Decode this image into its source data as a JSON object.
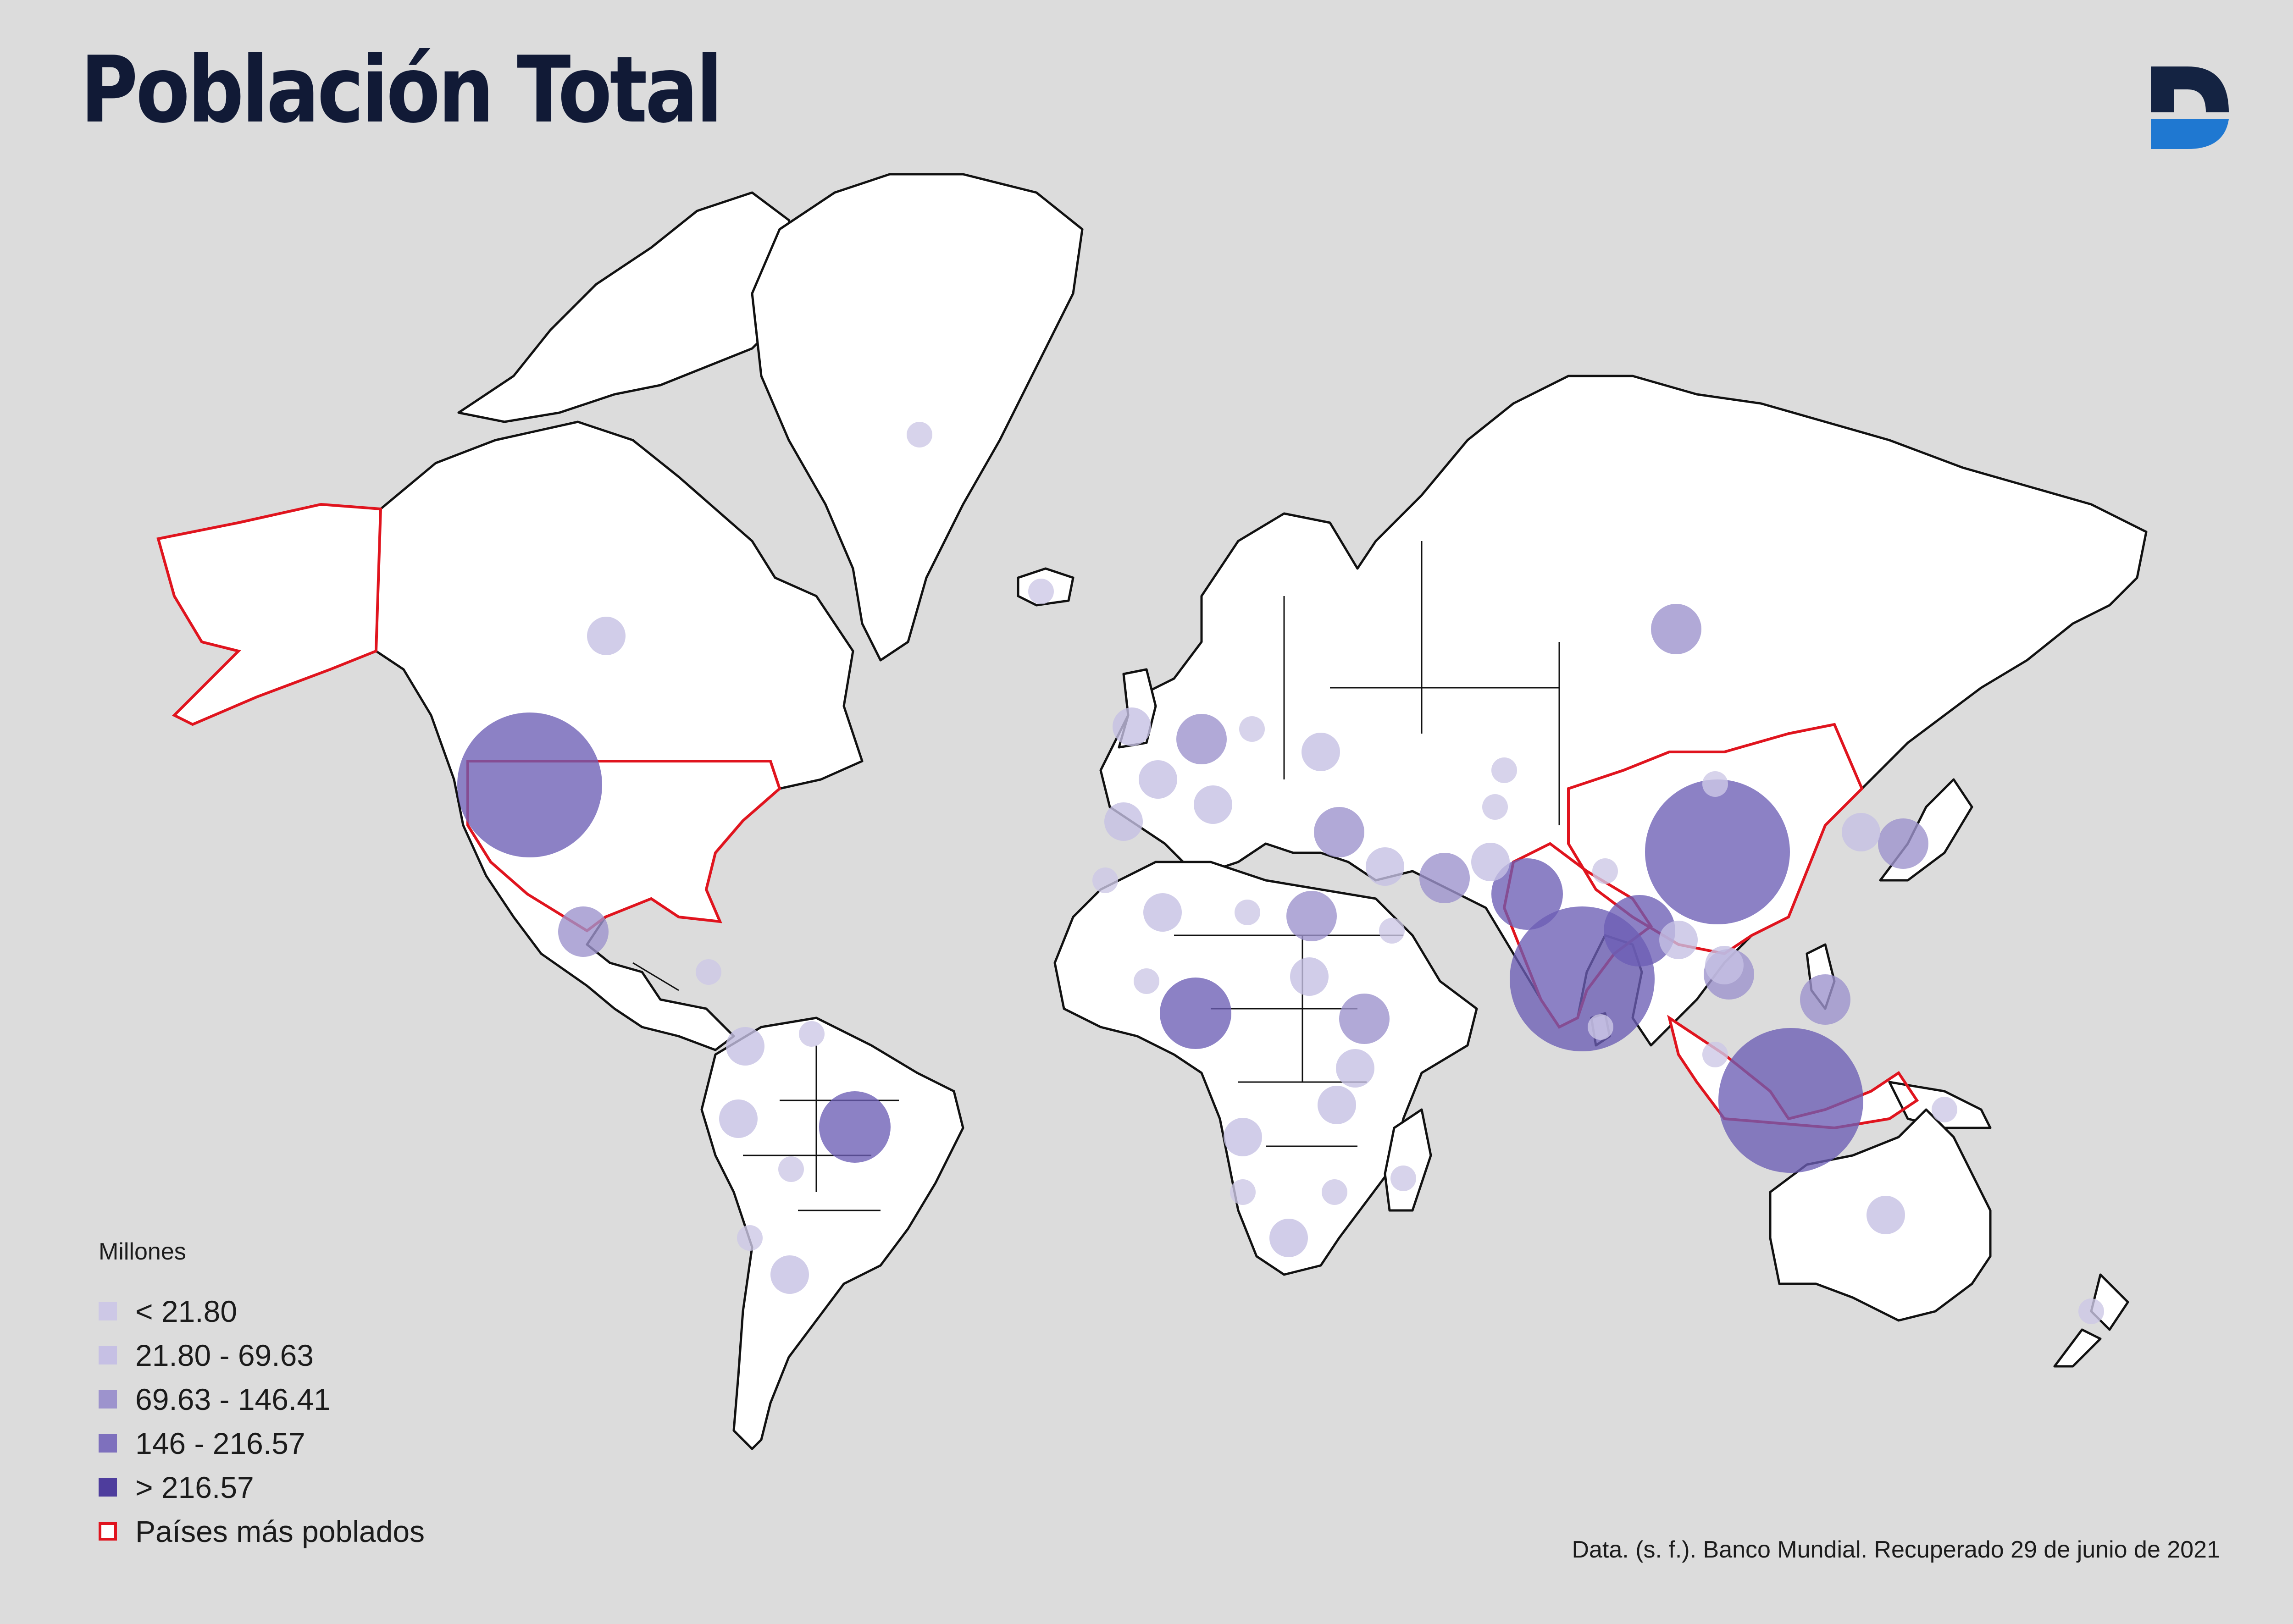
{
  "title": "Población Total",
  "logo": {
    "icon": "d-letter-logo-icon",
    "colors": [
      "#142342",
      "#1f78d1"
    ]
  },
  "colors": {
    "background": "#dcdcdc",
    "land": "#ffffff",
    "border": "#111111",
    "highlight_border": "#e0141e"
  },
  "legend": {
    "title": "Millones",
    "items": [
      {
        "label": "< 21.80",
        "color": "#cdc8e6"
      },
      {
        "label": "21.80  -  69.63",
        "color": "#c6c0e4"
      },
      {
        "label": "69.63  -  146.41",
        "color": "#9d93cd"
      },
      {
        "label": "146  -  216.57",
        "color": "#7e70bd"
      },
      {
        "label": "> 216.57",
        "color": "#4e3d9d"
      }
    ],
    "highlight": {
      "label": "Países más poblados",
      "color": "#e0141e"
    }
  },
  "source": "Data. (s. f.). Banco Mundial. Recuperado 29 de junio de 2021",
  "map_data": {
    "type": "proportional-symbol-map",
    "unit": "Millones",
    "highlighted_countries": [
      "Estados Unidos",
      "China",
      "India",
      "Indonesia"
    ],
    "bubbles": [
      {
        "region": "Estados Unidos",
        "class": 5
      },
      {
        "region": "China",
        "class": 5
      },
      {
        "region": "India",
        "class": 5
      },
      {
        "region": "Indonesia",
        "class": 5
      },
      {
        "region": "Brasil",
        "class": 4
      },
      {
        "region": "Nigeria",
        "class": 4
      },
      {
        "region": "Pakistán",
        "class": 4
      },
      {
        "region": "Bangladés",
        "class": 4
      },
      {
        "region": "Rusia",
        "class": 3
      },
      {
        "region": "México",
        "class": 3
      },
      {
        "region": "Japón",
        "class": 3
      },
      {
        "region": "Etiopía",
        "class": 3
      },
      {
        "region": "Filipinas",
        "class": 3
      },
      {
        "region": "Egipto",
        "class": 3
      },
      {
        "region": "Vietnam",
        "class": 3
      },
      {
        "region": "Irán",
        "class": 3
      },
      {
        "region": "Turquía",
        "class": 3
      },
      {
        "region": "Alemania",
        "class": 3
      },
      {
        "region": "Canadá",
        "class": 2
      },
      {
        "region": "Groenlandia",
        "class": 1
      },
      {
        "region": "Australia",
        "class": 2
      },
      {
        "region": "Argentina",
        "class": 2
      },
      {
        "region": "Colombia",
        "class": 2
      },
      {
        "region": "Perú",
        "class": 2
      },
      {
        "region": "Sudáfrica",
        "class": 2
      },
      {
        "region": "Francia",
        "class": 2
      },
      {
        "region": "Reino Unido",
        "class": 2
      },
      {
        "region": "Italia",
        "class": 2
      },
      {
        "region": "España",
        "class": 2
      },
      {
        "region": "Tailandia",
        "class": 2
      },
      {
        "region": "Myanmar",
        "class": 2
      },
      {
        "region": "Corea del Sur",
        "class": 2
      },
      {
        "region": "RD Congo",
        "class": 2
      },
      {
        "region": "Tanzania",
        "class": 2
      },
      {
        "region": "Kenia",
        "class": 2
      },
      {
        "region": "Sudán",
        "class": 2
      },
      {
        "region": "Argelia",
        "class": 2
      },
      {
        "region": "Irak",
        "class": 2
      },
      {
        "region": "Afganistán",
        "class": 2
      },
      {
        "region": "Ucrania",
        "class": 2
      },
      {
        "region": "Polonia",
        "class": 1
      },
      {
        "region": "Kazajistán",
        "class": 1
      },
      {
        "region": "Arabia Saudita",
        "class": 1
      },
      {
        "region": "Uzbekistán",
        "class": 1
      },
      {
        "region": "Malasia",
        "class": 1
      },
      {
        "region": "Venezuela",
        "class": 1
      },
      {
        "region": "Chile",
        "class": 1
      },
      {
        "region": "Bolivia",
        "class": 1
      },
      {
        "region": "Angola",
        "class": 1
      },
      {
        "region": "Mozambique",
        "class": 1
      },
      {
        "region": "Madagascar",
        "class": 1
      },
      {
        "region": "Marruecos",
        "class": 1
      },
      {
        "region": "Mali",
        "class": 1
      },
      {
        "region": "Libia",
        "class": 1
      },
      {
        "region": "Mongolia",
        "class": 1
      },
      {
        "region": "Nepal",
        "class": 1
      },
      {
        "region": "Sri Lanka",
        "class": 1
      },
      {
        "region": "Papúa Nueva Guinea",
        "class": 1
      },
      {
        "region": "Nueva Zelanda",
        "class": 1
      },
      {
        "region": "Cuba",
        "class": 1
      },
      {
        "region": "Islandia",
        "class": 1
      }
    ]
  }
}
